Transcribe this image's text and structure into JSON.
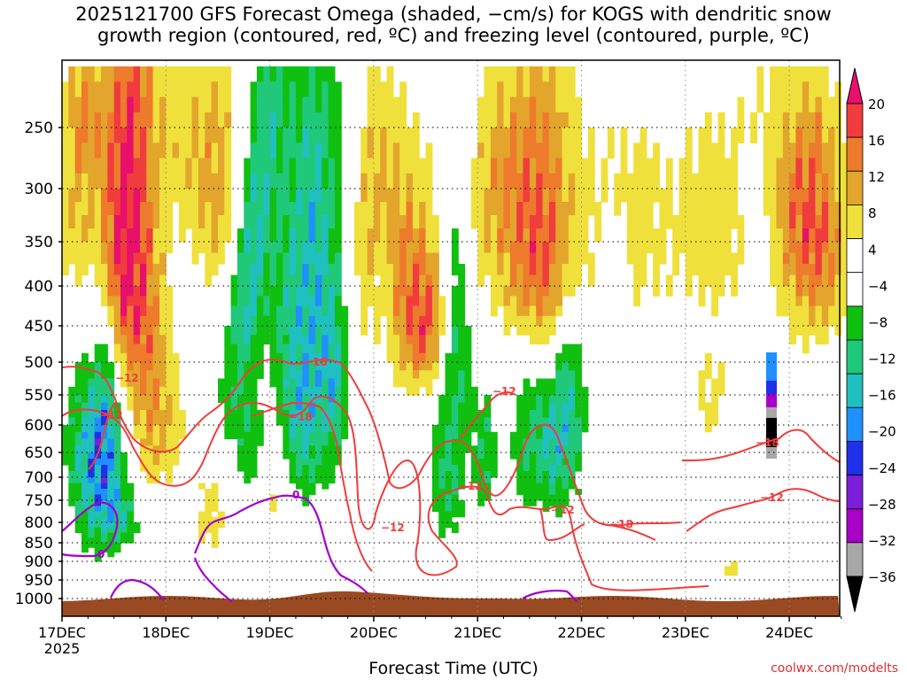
{
  "title": "2025121700 GFS Forecast Omega (shaded, −cm/s) for KOGS with dendritic snow\ngrowth region (contoured, red, ºC) and freezing level (contoured, purple, ºC)",
  "credit": "coolwx.com/modelts",
  "chart_data": {
    "type": "time-height",
    "title": "2025121700 GFS Forecast Omega for KOGS",
    "xlabel": "Forecast Time (UTC)",
    "ylabel": "",
    "x_ticks": [
      "17DEC",
      "18DEC",
      "19DEC",
      "20DEC",
      "21DEC",
      "22DEC",
      "23DEC",
      "24DEC"
    ],
    "x_start_extra_label": "2025",
    "x_range_hours": [
      0,
      182
    ],
    "y_ticks": [
      250,
      300,
      350,
      400,
      450,
      500,
      550,
      600,
      650,
      700,
      750,
      800,
      850,
      900,
      950,
      1000
    ],
    "y_range_hpa": [
      200,
      1025
    ],
    "colorbar": {
      "labels": [
        "20",
        "16",
        "12",
        "8",
        "4",
        "−4",
        "−8",
        "−12",
        "−16",
        "−20",
        "−24",
        "−28",
        "−32",
        "−36"
      ],
      "colors": [
        "#e8106a",
        "#f03c3c",
        "#ee7a2c",
        "#e3a52c",
        "#e7cf46",
        "#f0e33c",
        "#ffffff",
        "#10c010",
        "#20c870",
        "#20c8b8",
        "#1e90ff",
        "#2030e8",
        "#7b20d8",
        "#a800c8",
        "#a8a8a8",
        "#000000"
      ]
    },
    "contours_dgz_red": [
      {
        "label": "−12"
      },
      {
        "label": "−18"
      },
      {
        "label": "−12"
      },
      {
        "label": "−18"
      },
      {
        "label": "−12"
      },
      {
        "label": "−12"
      },
      {
        "label": "−12"
      },
      {
        "label": "−18"
      },
      {
        "label": "−12"
      },
      {
        "label": "−18"
      },
      {
        "label": "−12"
      }
    ],
    "contours_freezing_purple": [
      {
        "label": "0"
      },
      {
        "label": "0"
      }
    ]
  }
}
